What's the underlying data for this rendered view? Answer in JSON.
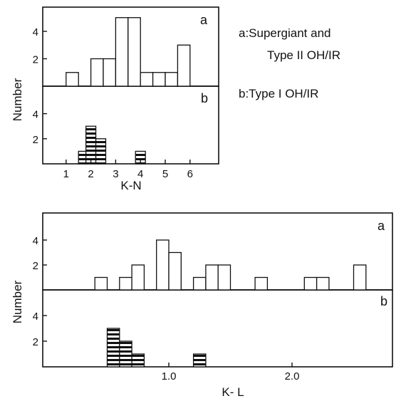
{
  "chart_data": [
    {
      "type": "bar",
      "xlabel": "K-N",
      "ylabel": "Number",
      "xlim": [
        0,
        7
      ],
      "xticks": [
        "1",
        "2",
        "3",
        "4",
        "5",
        "6"
      ],
      "yticks": [
        "2",
        "4"
      ],
      "ylim": [
        0,
        6
      ],
      "legend": {
        "a_line1": "a:Supergiant and",
        "a_line2": "Type II OH/IR",
        "b_line1": "b:Type I OH/IR"
      },
      "series": [
        {
          "panel_label": "a",
          "fill": "open",
          "bars": [
            {
              "x0": 1.0,
              "x1": 1.5,
              "value": 1
            },
            {
              "x0": 2.0,
              "x1": 2.5,
              "value": 2
            },
            {
              "x0": 2.5,
              "x1": 3.0,
              "value": 2
            },
            {
              "x0": 3.0,
              "x1": 3.5,
              "value": 5
            },
            {
              "x0": 3.5,
              "x1": 4.0,
              "value": 5
            },
            {
              "x0": 4.0,
              "x1": 4.5,
              "value": 1
            },
            {
              "x0": 4.5,
              "x1": 5.0,
              "value": 1
            },
            {
              "x0": 5.0,
              "x1": 5.5,
              "value": 1
            },
            {
              "x0": 5.5,
              "x1": 6.0,
              "value": 3
            }
          ]
        },
        {
          "panel_label": "b",
          "fill": "hatched",
          "bars": [
            {
              "x0": 1.5,
              "x1": 1.8,
              "value": 1
            },
            {
              "x0": 1.8,
              "x1": 2.2,
              "value": 3
            },
            {
              "x0": 2.2,
              "x1": 2.6,
              "value": 2
            },
            {
              "x0": 3.8,
              "x1": 4.2,
              "value": 1
            }
          ]
        }
      ]
    },
    {
      "type": "bar",
      "xlabel": "K- L",
      "ylabel": "Number",
      "xlim": [
        0.0,
        2.85
      ],
      "xticks": [
        "1.0",
        "2.0"
      ],
      "yticks": [
        "2",
        "4"
      ],
      "ylim": [
        0,
        6
      ],
      "series": [
        {
          "panel_label": "a",
          "fill": "open",
          "bars": [
            {
              "x0": 0.4,
              "x1": 0.5,
              "value": 1
            },
            {
              "x0": 0.6,
              "x1": 0.7,
              "value": 1
            },
            {
              "x0": 0.7,
              "x1": 0.8,
              "value": 2
            },
            {
              "x0": 0.9,
              "x1": 1.0,
              "value": 4
            },
            {
              "x0": 1.0,
              "x1": 1.1,
              "value": 3
            },
            {
              "x0": 1.2,
              "x1": 1.3,
              "value": 1
            },
            {
              "x0": 1.3,
              "x1": 1.4,
              "value": 2
            },
            {
              "x0": 1.4,
              "x1": 1.5,
              "value": 2
            },
            {
              "x0": 1.7,
              "x1": 1.8,
              "value": 1
            },
            {
              "x0": 2.1,
              "x1": 2.2,
              "value": 1
            },
            {
              "x0": 2.2,
              "x1": 2.3,
              "value": 1
            },
            {
              "x0": 2.5,
              "x1": 2.6,
              "value": 2
            }
          ]
        },
        {
          "panel_label": "b",
          "fill": "hatched",
          "bars": [
            {
              "x0": 0.5,
              "x1": 0.6,
              "value": 3
            },
            {
              "x0": 0.6,
              "x1": 0.7,
              "value": 2
            },
            {
              "x0": 0.7,
              "x1": 0.8,
              "value": 1
            },
            {
              "x0": 1.2,
              "x1": 1.3,
              "value": 1
            }
          ]
        }
      ]
    }
  ]
}
